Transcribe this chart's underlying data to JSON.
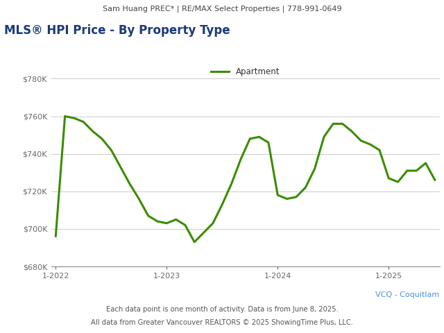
{
  "title_top": "Sam Huang PREC* | RE/MAX Select Properties | 778-991-0649",
  "title_main": "MLS® HPI Price - By Property Type",
  "legend_label": "Apartment",
  "vcq_label": "VCQ - Coquitlam",
  "footer1": "Each data point is one month of activity. Data is from June 8, 2025.",
  "footer2": "All data from Greater Vancouver REALTORS © 2025 ShowingTime Plus, LLC.",
  "line_color": "#3a8c00",
  "x_tick_labels": [
    "1-2022",
    "1-2023",
    "1-2024",
    "1-2025"
  ],
  "ylim": [
    680000,
    790000
  ],
  "yticks": [
    680000,
    700000,
    720000,
    740000,
    760000,
    780000
  ],
  "ytick_labels": [
    "$680K",
    "$700K",
    "$720K",
    "$740K",
    "$760K",
    "$780K"
  ],
  "background_color": "#ffffff",
  "header_bg": "#e0e0e0",
  "data_x": [
    0,
    1,
    2,
    3,
    4,
    5,
    6,
    7,
    8,
    9,
    10,
    11,
    12,
    13,
    14,
    15,
    16,
    17,
    18,
    19,
    20,
    21,
    22,
    23,
    24,
    25,
    26,
    27,
    28,
    29,
    30,
    31,
    32,
    33,
    34,
    35,
    36,
    37,
    38,
    39,
    40,
    41
  ],
  "data_y": [
    696000,
    760000,
    759000,
    757000,
    752000,
    748000,
    742000,
    733000,
    724000,
    716000,
    707000,
    704000,
    703000,
    705000,
    702000,
    693000,
    698000,
    703000,
    713000,
    724000,
    737000,
    748000,
    749000,
    746000,
    718000,
    716000,
    717000,
    722000,
    732000,
    749000,
    756000,
    756000,
    752000,
    747000,
    745000,
    742000,
    727000,
    725000,
    731000,
    731000,
    735000,
    726000
  ],
  "title_main_color": "#1a3a7a",
  "vcq_color": "#4a90d9",
  "header_text_color": "#444444",
  "footer_text_color": "#555555"
}
